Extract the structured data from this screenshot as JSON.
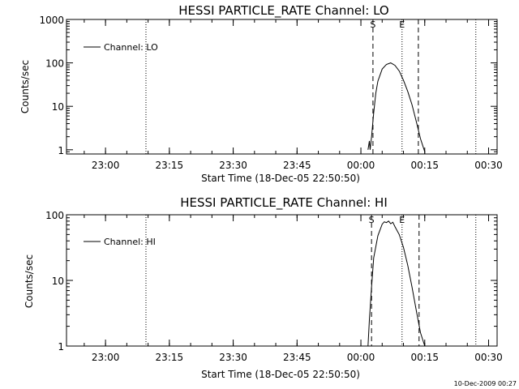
{
  "footer": {
    "timestamp": "10-Dec-2009 00:27"
  },
  "chart_data": [
    {
      "type": "line",
      "title": "HESSI PARTICLE_RATE Channel: LO",
      "xlabel": "Start Time (18-Dec-05 22:50:50)",
      "ylabel": "Counts/sec",
      "yscale": "log",
      "xlim": [
        "22:50:50",
        "00:32:00"
      ],
      "ylim": [
        0.8,
        1000
      ],
      "xticks": [
        "23:00",
        "23:15",
        "23:30",
        "23:45",
        "00:00",
        "00:15",
        "00:30"
      ],
      "yticks": [
        1,
        10,
        100,
        1000
      ],
      "ytick_labels": [
        "1",
        "10",
        "100",
        "1000"
      ],
      "legend": {
        "entries": [
          "Channel: LO"
        ],
        "placement": "top-left"
      },
      "markers": [
        {
          "style": "dotted",
          "x": "23:09:30"
        },
        {
          "style": "dashed",
          "x": "00:02:50",
          "label": "S"
        },
        {
          "style": "dotted",
          "x": "00:09:40",
          "label": "E"
        },
        {
          "style": "dashed",
          "x": "00:13:30"
        },
        {
          "style": "dotted",
          "x": "00:27:00"
        }
      ],
      "series": [
        {
          "name": "Channel: LO",
          "x": [
            "00:01:40",
            "00:02:00",
            "00:02:10",
            "00:02:30",
            "00:03:00",
            "00:03:30",
            "00:04:00",
            "00:05:00",
            "00:06:00",
            "00:07:00",
            "00:08:00",
            "00:09:00",
            "00:10:00",
            "00:11:00",
            "00:12:00",
            "00:13:00",
            "00:14:00",
            "00:15:00"
          ],
          "y": [
            1.0,
            1.6,
            1.0,
            2.0,
            7,
            20,
            38,
            72,
            92,
            100,
            88,
            65,
            40,
            22,
            11,
            4.5,
            1.8,
            0.9
          ]
        }
      ]
    },
    {
      "type": "line",
      "title": "HESSI PARTICLE_RATE Channel: HI",
      "xlabel": "Start Time (18-Dec-05 22:50:50)",
      "ylabel": "Counts/sec",
      "yscale": "log",
      "xlim": [
        "22:50:50",
        "00:32:00"
      ],
      "ylim": [
        1,
        100
      ],
      "xticks": [
        "23:00",
        "23:15",
        "23:30",
        "23:45",
        "00:00",
        "00:15",
        "00:30"
      ],
      "yticks": [
        1,
        10,
        100
      ],
      "ytick_labels": [
        "1",
        "10",
        "100"
      ],
      "legend": {
        "entries": [
          "Channel: HI"
        ],
        "placement": "top-left"
      },
      "markers": [
        {
          "style": "dotted",
          "x": "23:09:30"
        },
        {
          "style": "dashed",
          "x": "00:02:30",
          "label": "S"
        },
        {
          "style": "dotted",
          "x": "00:09:40",
          "label": "E"
        },
        {
          "style": "dashed",
          "x": "00:13:40"
        },
        {
          "style": "dotted",
          "x": "00:27:00"
        }
      ],
      "series": [
        {
          "name": "Channel: HI",
          "x": [
            "00:01:40",
            "00:02:00",
            "00:02:30",
            "00:03:00",
            "00:04:00",
            "00:05:00",
            "00:05:30",
            "00:06:00",
            "00:06:30",
            "00:07:00",
            "00:07:30",
            "00:08:00",
            "00:09:00",
            "00:10:00",
            "00:11:00",
            "00:12:00",
            "00:13:00",
            "00:14:00",
            "00:15:00"
          ],
          "y": [
            1.0,
            2.5,
            8,
            22,
            48,
            72,
            78,
            76,
            80,
            73,
            77,
            66,
            50,
            32,
            17,
            8,
            3.5,
            1.6,
            1.0
          ]
        }
      ]
    }
  ]
}
